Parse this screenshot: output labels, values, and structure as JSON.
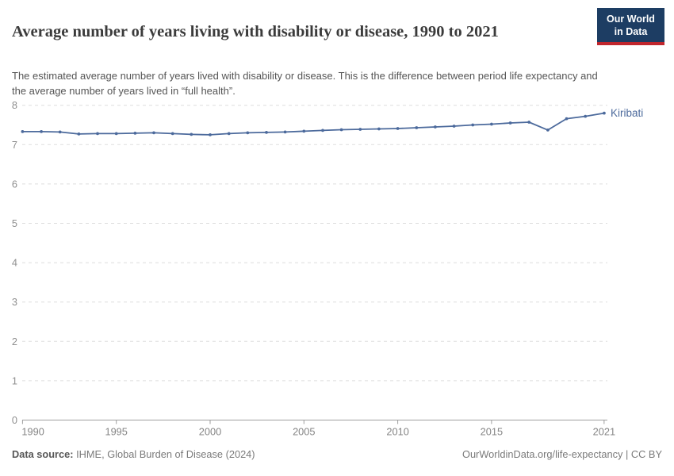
{
  "header": {
    "title": "Average number of years living with disability or disease, 1990 to 2021",
    "logo": {
      "line1": "Our World",
      "line2": "in Data"
    }
  },
  "subtitle": "The estimated average number of years lived with disability or disease. This is the difference between period life expectancy and the average number of years lived in “full health”.",
  "chart_data": {
    "type": "line",
    "title": "Average number of years living with disability or disease, 1990 to 2021",
    "xlabel": "",
    "ylabel": "",
    "xlim": [
      1990,
      2021
    ],
    "ylim": [
      0,
      8
    ],
    "x_ticks": [
      1990,
      1995,
      2000,
      2005,
      2010,
      2015,
      2021
    ],
    "y_ticks": [
      0,
      1,
      2,
      3,
      4,
      5,
      6,
      7,
      8
    ],
    "grid": "horizontal-dashed",
    "legend_position": "end-of-line-label",
    "series": [
      {
        "name": "Kiribati",
        "color": "#4c6a9c",
        "x": [
          1990,
          1991,
          1992,
          1993,
          1994,
          1995,
          1996,
          1997,
          1998,
          1999,
          2000,
          2001,
          2002,
          2003,
          2004,
          2005,
          2006,
          2007,
          2008,
          2009,
          2010,
          2011,
          2012,
          2013,
          2014,
          2015,
          2016,
          2017,
          2018,
          2019,
          2020,
          2021
        ],
        "values": [
          7.33,
          7.33,
          7.32,
          7.27,
          7.28,
          7.28,
          7.29,
          7.3,
          7.28,
          7.26,
          7.25,
          7.28,
          7.3,
          7.31,
          7.32,
          7.34,
          7.36,
          7.38,
          7.39,
          7.4,
          7.41,
          7.43,
          7.45,
          7.47,
          7.5,
          7.52,
          7.55,
          7.57,
          7.37,
          7.66,
          7.72,
          7.8
        ]
      }
    ]
  },
  "footer": {
    "source_label": "Data source:",
    "source_text": " IHME, Global Burden of Disease (2024)",
    "credit": "OurWorldinData.org/life-expectancy | CC BY"
  },
  "colors": {
    "line": "#4c6a9c",
    "end_label": "#4c6a9c",
    "logo_bg": "#1d3d63",
    "logo_red": "#c0262d",
    "grid": "#dddddd",
    "axis": "#9e9e9e",
    "y_tick_text": "#8f8f8f",
    "x_tick_text": "#858585"
  }
}
